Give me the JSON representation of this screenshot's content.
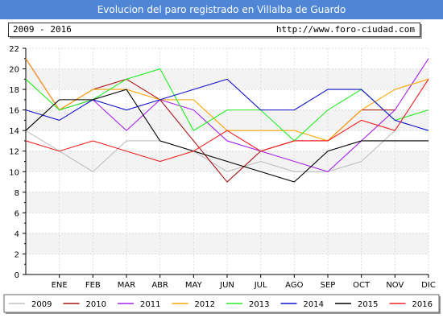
{
  "header": {
    "title": "Evolucion del paro registrado en Villalba de Guardo",
    "period": "2009 - 2016",
    "url": "http://www.foro-ciudad.com"
  },
  "chart_data": {
    "type": "line",
    "categories": [
      "ENE",
      "FEB",
      "MAR",
      "ABR",
      "MAY",
      "JUN",
      "JUL",
      "AGO",
      "SEP",
      "OCT",
      "NOV",
      "DIC"
    ],
    "ylim": [
      0,
      22
    ],
    "yticks": [
      0,
      2,
      4,
      6,
      8,
      10,
      12,
      14,
      16,
      18,
      20,
      22
    ],
    "grid": true,
    "legend_position": "bottom",
    "series": [
      {
        "name": "2009",
        "color": "#c0c0c0",
        "start": 14,
        "values": [
          12,
          10,
          13,
          13,
          12,
          10,
          11,
          10,
          10,
          11,
          14,
          null
        ]
      },
      {
        "name": "2010",
        "color": "#aa1111",
        "start": 21,
        "values": [
          16,
          18,
          19,
          17,
          13,
          9,
          12,
          13,
          13,
          16,
          16,
          null
        ]
      },
      {
        "name": "2011",
        "color": "#aa22ee",
        "start": 21,
        "values": [
          16,
          17,
          14,
          17,
          16,
          13,
          12,
          11,
          10,
          13,
          16,
          21
        ]
      },
      {
        "name": "2012",
        "color": "#ffa500",
        "start": 21,
        "values": [
          16,
          18,
          18,
          17,
          17,
          14,
          14,
          14,
          13,
          16,
          18,
          19
        ]
      },
      {
        "name": "2013",
        "color": "#22ee22",
        "start": 19,
        "values": [
          16,
          17,
          19,
          20,
          14,
          16,
          16,
          13,
          16,
          18,
          15,
          16
        ]
      },
      {
        "name": "2014",
        "color": "#1111cc",
        "start": 16,
        "values": [
          15,
          17,
          16,
          17,
          18,
          19,
          16,
          16,
          18,
          18,
          15,
          14
        ]
      },
      {
        "name": "2015",
        "color": "#000000",
        "start": 14,
        "values": [
          17,
          17,
          18,
          13,
          12,
          11,
          10,
          9,
          12,
          13,
          13,
          13
        ]
      },
      {
        "name": "2016",
        "color": "#ee2222",
        "start": 13,
        "values": [
          12,
          13,
          12,
          11,
          12,
          14,
          12,
          13,
          13,
          15,
          14,
          19
        ]
      }
    ]
  }
}
